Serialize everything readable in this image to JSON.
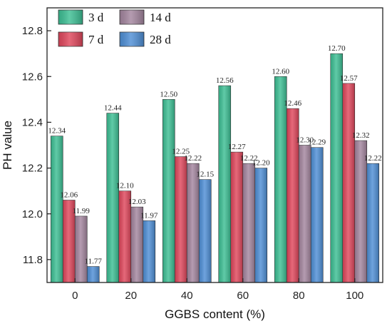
{
  "chart_data": {
    "type": "bar",
    "title": "",
    "xlabel": "GGBS content (%)",
    "ylabel": "PH value",
    "categories": [
      "0",
      "20",
      "40",
      "60",
      "80",
      "100"
    ],
    "ylim": [
      11.7,
      12.9
    ],
    "yticks": [
      "11.8",
      "12.0",
      "12.2",
      "12.4",
      "12.6",
      "12.8"
    ],
    "grid": false,
    "legend_placement": "top-left",
    "series": [
      {
        "name": "3 d",
        "color": "#3dbf94",
        "values": [
          12.34,
          12.44,
          12.5,
          12.56,
          12.6,
          12.7
        ],
        "labels": [
          "12.34",
          "12.44",
          "12.50",
          "12.56",
          "12.60",
          "12.70"
        ]
      },
      {
        "name": "7 d",
        "color": "#e0475c",
        "values": [
          12.06,
          12.1,
          12.25,
          12.27,
          12.46,
          12.57
        ],
        "labels": [
          "12.06",
          "12.10",
          "12.25",
          "12.27",
          "12.46",
          "12.57"
        ]
      },
      {
        "name": "14 d",
        "color": "#a4869f",
        "values": [
          11.99,
          12.03,
          12.22,
          12.22,
          12.3,
          12.32
        ],
        "labels": [
          "11.99",
          "12.03",
          "12.22",
          "12.22",
          "12.30",
          "12.32"
        ]
      },
      {
        "name": "28 d",
        "color": "#4f8fd6",
        "values": [
          11.77,
          11.97,
          12.15,
          12.2,
          12.29,
          12.22
        ],
        "labels": [
          "11.77",
          "11.97",
          "12.15",
          "12.20",
          "12.29",
          "12.22"
        ]
      }
    ]
  }
}
